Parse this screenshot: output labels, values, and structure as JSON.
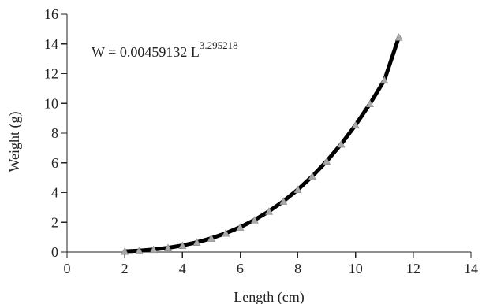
{
  "chart_data": {
    "type": "line",
    "xlabel": "Length (cm)",
    "ylabel": "Weight (g)",
    "xlim": [
      0,
      14
    ],
    "ylim": [
      0,
      16
    ],
    "xticks": [
      0,
      2,
      4,
      6,
      8,
      10,
      12,
      14
    ],
    "yticks": [
      0,
      2,
      4,
      6,
      8,
      10,
      12,
      14,
      16
    ],
    "equation": {
      "prefix": "W = 0.00459132 L",
      "exponent": "3.295218"
    },
    "series": [
      {
        "points": [
          {
            "x": 2.0,
            "y": 0.045
          },
          {
            "x": 2.5,
            "y": 0.093
          },
          {
            "x": 3.0,
            "y": 0.172
          },
          {
            "x": 3.5,
            "y": 0.285
          },
          {
            "x": 4.0,
            "y": 0.444
          },
          {
            "x": 4.5,
            "y": 0.656
          },
          {
            "x": 5.0,
            "y": 0.925
          },
          {
            "x": 5.5,
            "y": 1.262
          },
          {
            "x": 6.0,
            "y": 1.67
          },
          {
            "x": 6.5,
            "y": 2.16
          },
          {
            "x": 7.0,
            "y": 2.741
          },
          {
            "x": 7.5,
            "y": 3.418
          },
          {
            "x": 8.0,
            "y": 4.201
          },
          {
            "x": 8.5,
            "y": 5.096
          },
          {
            "x": 9.0,
            "y": 6.113
          },
          {
            "x": 9.5,
            "y": 7.26
          },
          {
            "x": 10.0,
            "y": 8.545
          },
          {
            "x": 10.5,
            "y": 9.976
          },
          {
            "x": 11.0,
            "y": 11.563
          },
          {
            "x": 11.5,
            "y": 14.45
          }
        ]
      }
    ]
  }
}
